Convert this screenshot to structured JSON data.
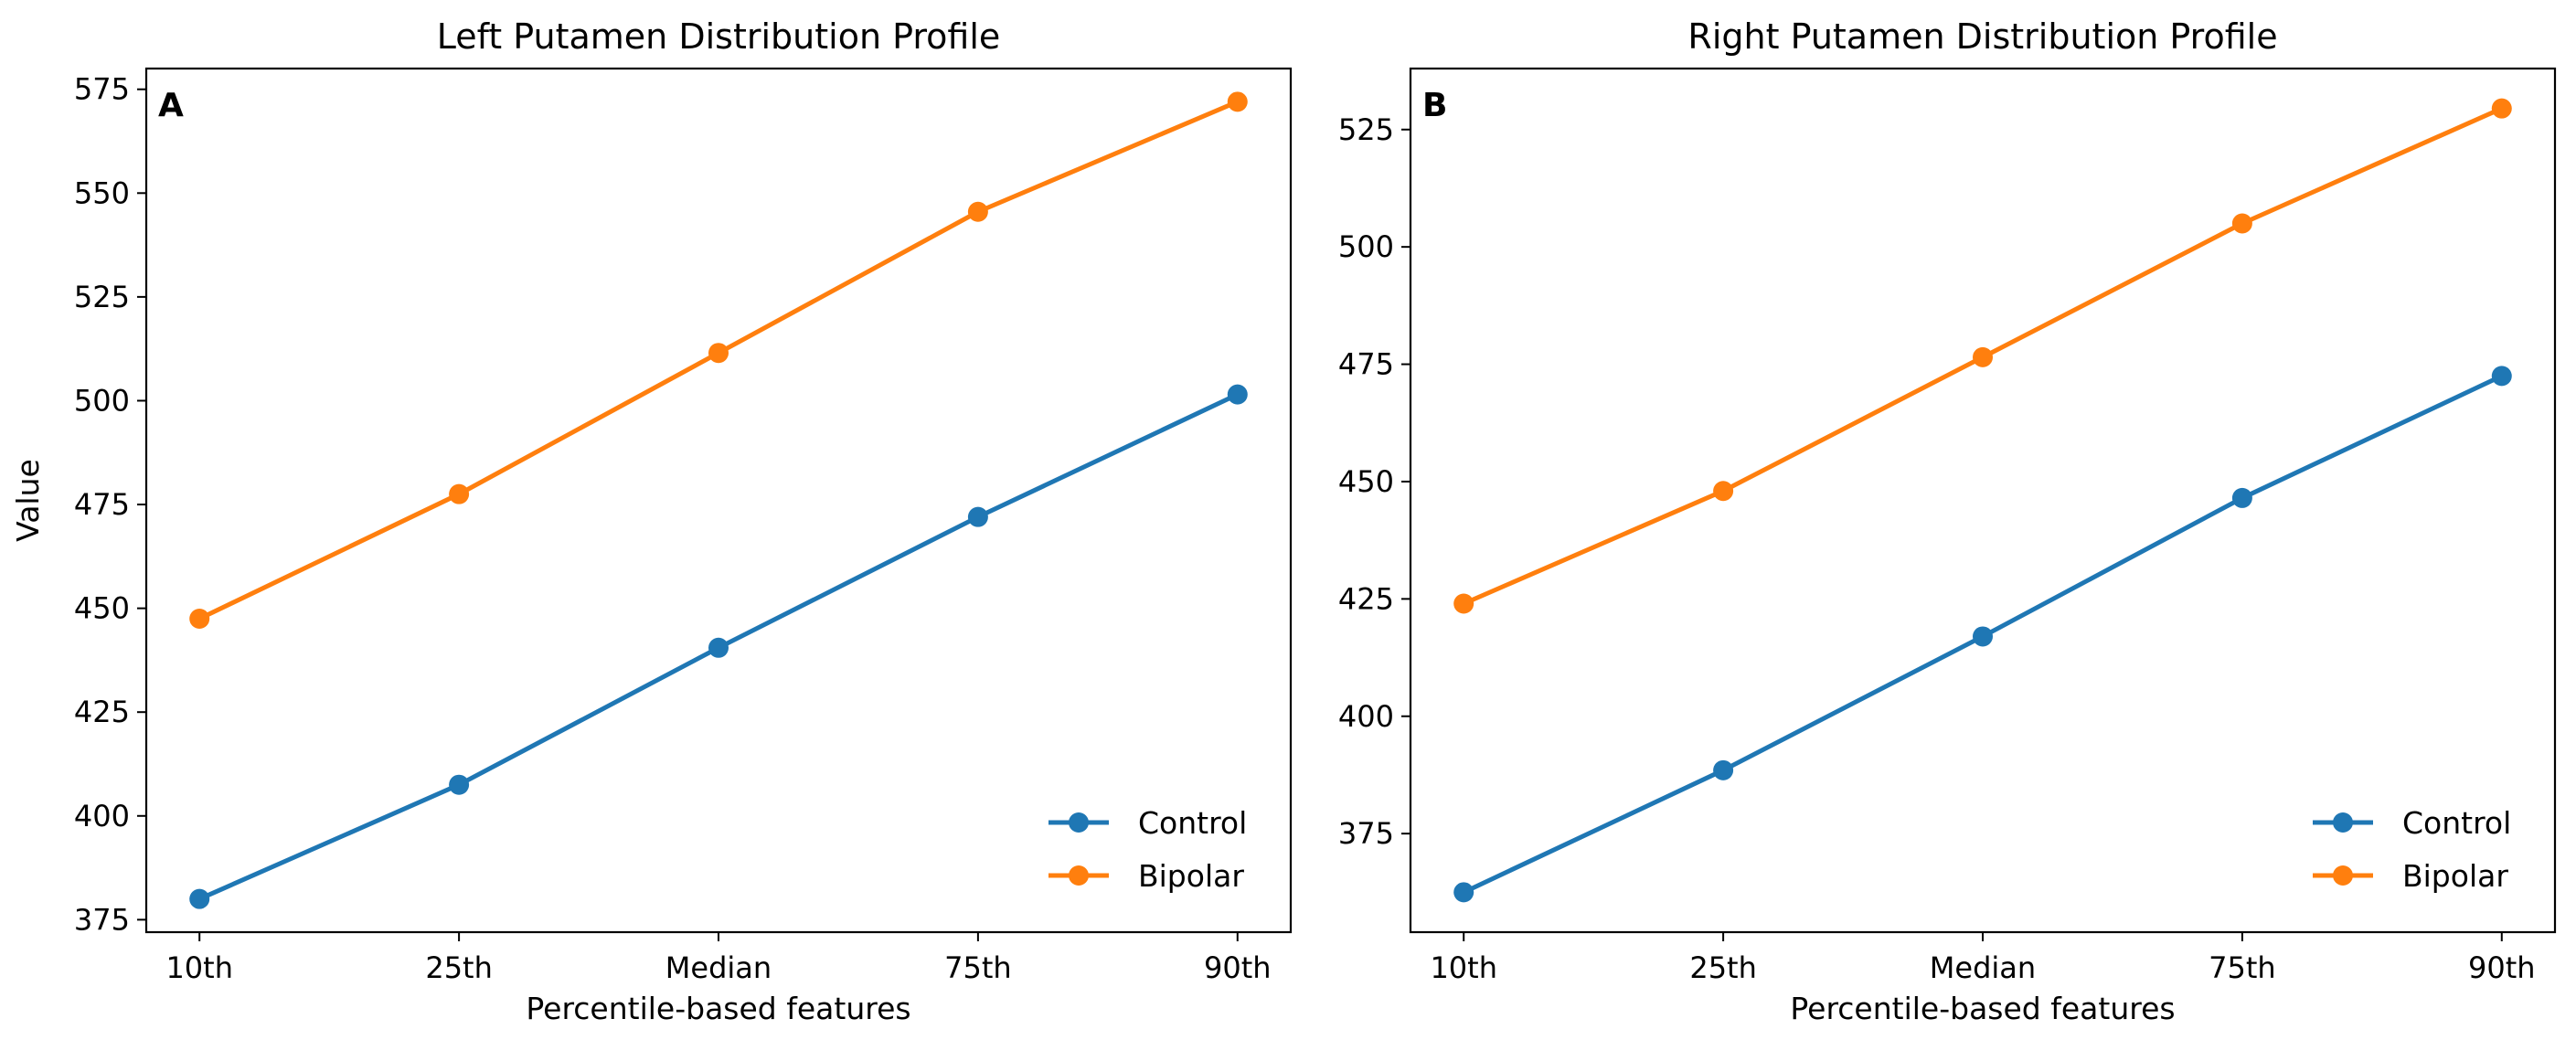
{
  "colors": {
    "control": "#1f77b4",
    "bipolar": "#ff7f0e"
  },
  "chart_data": [
    {
      "type": "line",
      "panel": "A",
      "title": "Left Putamen Distribution Profile",
      "xlabel": "Percentile-based features",
      "ylabel": "Value",
      "categories": [
        "10th",
        "25th",
        "Median",
        "75th",
        "90th"
      ],
      "ylim": [
        372,
        580
      ],
      "yticks": [
        375,
        400,
        425,
        450,
        475,
        500,
        525,
        550,
        575
      ],
      "legend_position": "lower right",
      "grid": false,
      "series": [
        {
          "name": "Control",
          "color": "#1f77b4",
          "values": [
            380,
            407.5,
            440.5,
            472,
            501.5
          ]
        },
        {
          "name": "Bipolar",
          "color": "#ff7f0e",
          "values": [
            447.5,
            477.5,
            511.5,
            545.5,
            572
          ]
        }
      ]
    },
    {
      "type": "line",
      "panel": "B",
      "title": "Right Putamen Distribution Profile",
      "xlabel": "Percentile-based features",
      "ylabel": "",
      "categories": [
        "10th",
        "25th",
        "Median",
        "75th",
        "90th"
      ],
      "ylim": [
        354,
        538
      ],
      "yticks": [
        375,
        400,
        425,
        450,
        475,
        500,
        525
      ],
      "legend_position": "lower right",
      "grid": false,
      "series": [
        {
          "name": "Control",
          "color": "#1f77b4",
          "values": [
            362.5,
            388.5,
            417,
            446.5,
            472.5
          ]
        },
        {
          "name": "Bipolar",
          "color": "#ff7f0e",
          "values": [
            424,
            448,
            476.5,
            505,
            529.5
          ]
        }
      ]
    }
  ]
}
